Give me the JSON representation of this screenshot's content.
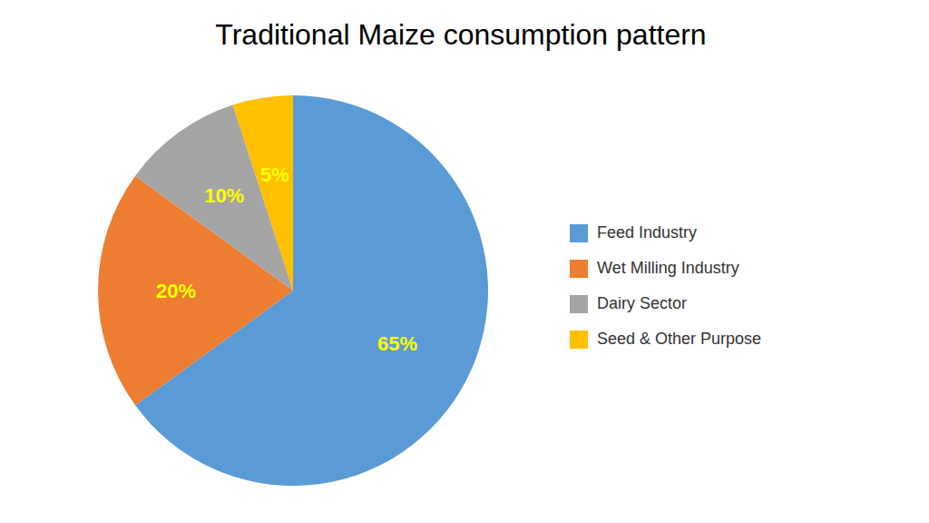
{
  "chart_data": {
    "type": "pie",
    "title": "Traditional Maize consumption pattern",
    "categories": [
      "Feed Industry",
      "Wet Milling Industry",
      "Dairy Sector",
      "Seed & Other Purpose"
    ],
    "values": [
      65,
      20,
      10,
      5
    ],
    "value_labels": [
      "65%",
      "20%",
      "10%",
      "5%"
    ],
    "colors": [
      "#5B9BD5",
      "#ED7D31",
      "#A5A5A5",
      "#FFC000"
    ],
    "data_labels": true,
    "legend": "right"
  }
}
